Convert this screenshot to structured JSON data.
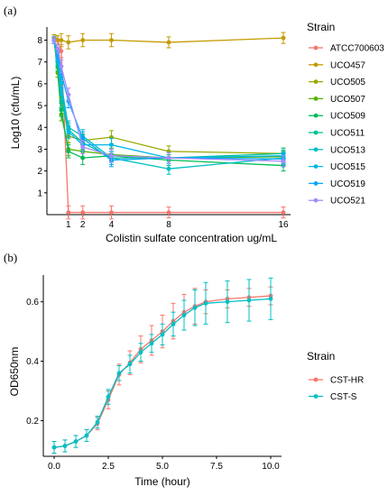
{
  "chart_data": [
    {
      "panel": "(a)",
      "type": "line",
      "xlabel": "Colistin sulfate concentration ug/mL",
      "ylabel": "Log10 (cfu/mL)",
      "x_ticks": [
        1,
        2,
        4,
        8,
        16
      ],
      "y_ticks": [
        1,
        2,
        3,
        4,
        5,
        6,
        7,
        8
      ],
      "xlim": [
        -0.5,
        16.5
      ],
      "ylim": [
        0,
        8.6
      ],
      "grid": false,
      "legend": {
        "title": "Strain",
        "placement": "right"
      },
      "x": [
        0,
        0.25,
        0.5,
        1,
        2,
        4,
        8,
        16
      ],
      "series": [
        {
          "name": "ATCC700603",
          "color": "#F8766D",
          "values": [
            8.1,
            8.0,
            7.5,
            0.1,
            0.1,
            0.1,
            0.1,
            0.1
          ]
        },
        {
          "name": "UCO457",
          "color": "#C49A00",
          "values": [
            8.1,
            8.0,
            8.0,
            7.9,
            8.0,
            8.0,
            7.9,
            8.1
          ]
        },
        {
          "name": "UCO505",
          "color": "#99A800",
          "values": [
            8.1,
            7.2,
            5.5,
            3.6,
            3.4,
            3.55,
            2.9,
            2.8
          ]
        },
        {
          "name": "UCO507",
          "color": "#53B400",
          "values": [
            8.0,
            6.5,
            4.6,
            3.0,
            2.9,
            2.75,
            2.6,
            2.65
          ]
        },
        {
          "name": "UCO509",
          "color": "#00BC56",
          "values": [
            8.0,
            6.8,
            4.8,
            2.9,
            2.6,
            2.7,
            2.5,
            2.25
          ]
        },
        {
          "name": "UCO511",
          "color": "#00C094",
          "values": [
            8.0,
            7.0,
            5.2,
            3.9,
            3.3,
            2.6,
            2.6,
            2.8
          ]
        },
        {
          "name": "UCO513",
          "color": "#00BFC4",
          "values": [
            8.0,
            7.3,
            6.0,
            4.0,
            3.6,
            2.6,
            2.1,
            2.6
          ]
        },
        {
          "name": "UCO515",
          "color": "#00B6EB",
          "values": [
            8.0,
            7.1,
            5.8,
            3.8,
            3.2,
            3.2,
            2.6,
            2.7
          ]
        },
        {
          "name": "UCO519",
          "color": "#06A4FF",
          "values": [
            8.0,
            7.4,
            6.5,
            5.2,
            3.5,
            2.5,
            2.6,
            2.55
          ]
        },
        {
          "name": "UCO521",
          "color": "#A58AFF",
          "values": [
            8.0,
            7.6,
            6.8,
            5.5,
            3.1,
            2.7,
            2.6,
            2.45
          ]
        }
      ],
      "error": [
        0.15,
        0.2,
        0.3,
        0.3,
        0.3,
        0.3,
        0.25,
        0.25
      ]
    },
    {
      "panel": "(b)",
      "type": "line",
      "xlabel": "Time (hour)",
      "ylabel": "OD650nm",
      "x_ticks": [
        0.0,
        2.5,
        5.0,
        7.5,
        10.0
      ],
      "y_ticks": [
        0.2,
        0.4,
        0.6
      ],
      "xlim": [
        -0.5,
        10.5
      ],
      "ylim": [
        0.08,
        0.69
      ],
      "grid": false,
      "legend": {
        "title": "Strain",
        "placement": "right"
      },
      "x": [
        0,
        0.5,
        1,
        1.5,
        2,
        2.5,
        3,
        3.5,
        4,
        4.5,
        5,
        5.5,
        6,
        6.5,
        7,
        8,
        9,
        10
      ],
      "series": [
        {
          "name": "CST-HR",
          "color": "#F8766D",
          "values": [
            0.11,
            0.115,
            0.13,
            0.15,
            0.19,
            0.27,
            0.355,
            0.395,
            0.44,
            0.47,
            0.5,
            0.535,
            0.565,
            0.585,
            0.6,
            0.61,
            0.615,
            0.62
          ],
          "error": [
            0.02,
            0.02,
            0.02,
            0.02,
            0.02,
            0.03,
            0.035,
            0.04,
            0.045,
            0.05,
            0.055,
            0.06,
            0.06,
            0.06,
            0.04,
            0.03,
            0.03,
            0.03
          ]
        },
        {
          "name": "CST-S",
          "color": "#00BFC4",
          "values": [
            0.11,
            0.115,
            0.13,
            0.15,
            0.195,
            0.28,
            0.36,
            0.39,
            0.43,
            0.46,
            0.49,
            0.525,
            0.555,
            0.58,
            0.595,
            0.6,
            0.605,
            0.61
          ],
          "error": [
            0.02,
            0.02,
            0.02,
            0.02,
            0.02,
            0.025,
            0.025,
            0.03,
            0.03,
            0.03,
            0.035,
            0.04,
            0.05,
            0.06,
            0.07,
            0.07,
            0.07,
            0.07
          ]
        }
      ]
    }
  ]
}
